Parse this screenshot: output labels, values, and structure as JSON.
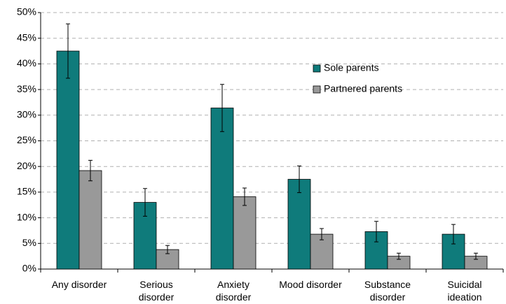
{
  "chart_data": {
    "type": "bar",
    "categories": [
      "Any disorder",
      "Serious disorder",
      "Anxiety disorder",
      "Mood disorder",
      "Substance disorder",
      "Suicidal ideation"
    ],
    "series": [
      {
        "name": "Sole parents",
        "color": "#0f7b7b",
        "values": [
          42.5,
          13.0,
          31.4,
          17.5,
          7.3,
          6.8
        ],
        "errors": [
          5.3,
          2.7,
          4.6,
          2.6,
          2.0,
          1.9
        ]
      },
      {
        "name": "Partnered parents",
        "color": "#999999",
        "values": [
          19.2,
          3.8,
          14.1,
          6.8,
          2.5,
          2.5
        ],
        "errors": [
          2.0,
          0.8,
          1.7,
          1.1,
          0.6,
          0.6
        ]
      }
    ],
    "ylim": [
      0,
      50
    ],
    "yticks": [
      {
        "value": 0,
        "label": "0%"
      },
      {
        "value": 5,
        "label": "5%"
      },
      {
        "value": 10,
        "label": "10%"
      },
      {
        "value": 15,
        "label": "15%"
      },
      {
        "value": 20,
        "label": "20%"
      },
      {
        "value": 25,
        "label": "25%"
      },
      {
        "value": 30,
        "label": "30%"
      },
      {
        "value": 35,
        "label": "35%"
      },
      {
        "value": 40,
        "label": "40%"
      },
      {
        "value": 45,
        "label": "45%"
      },
      {
        "value": 50,
        "label": "50%"
      }
    ],
    "grid": true
  }
}
